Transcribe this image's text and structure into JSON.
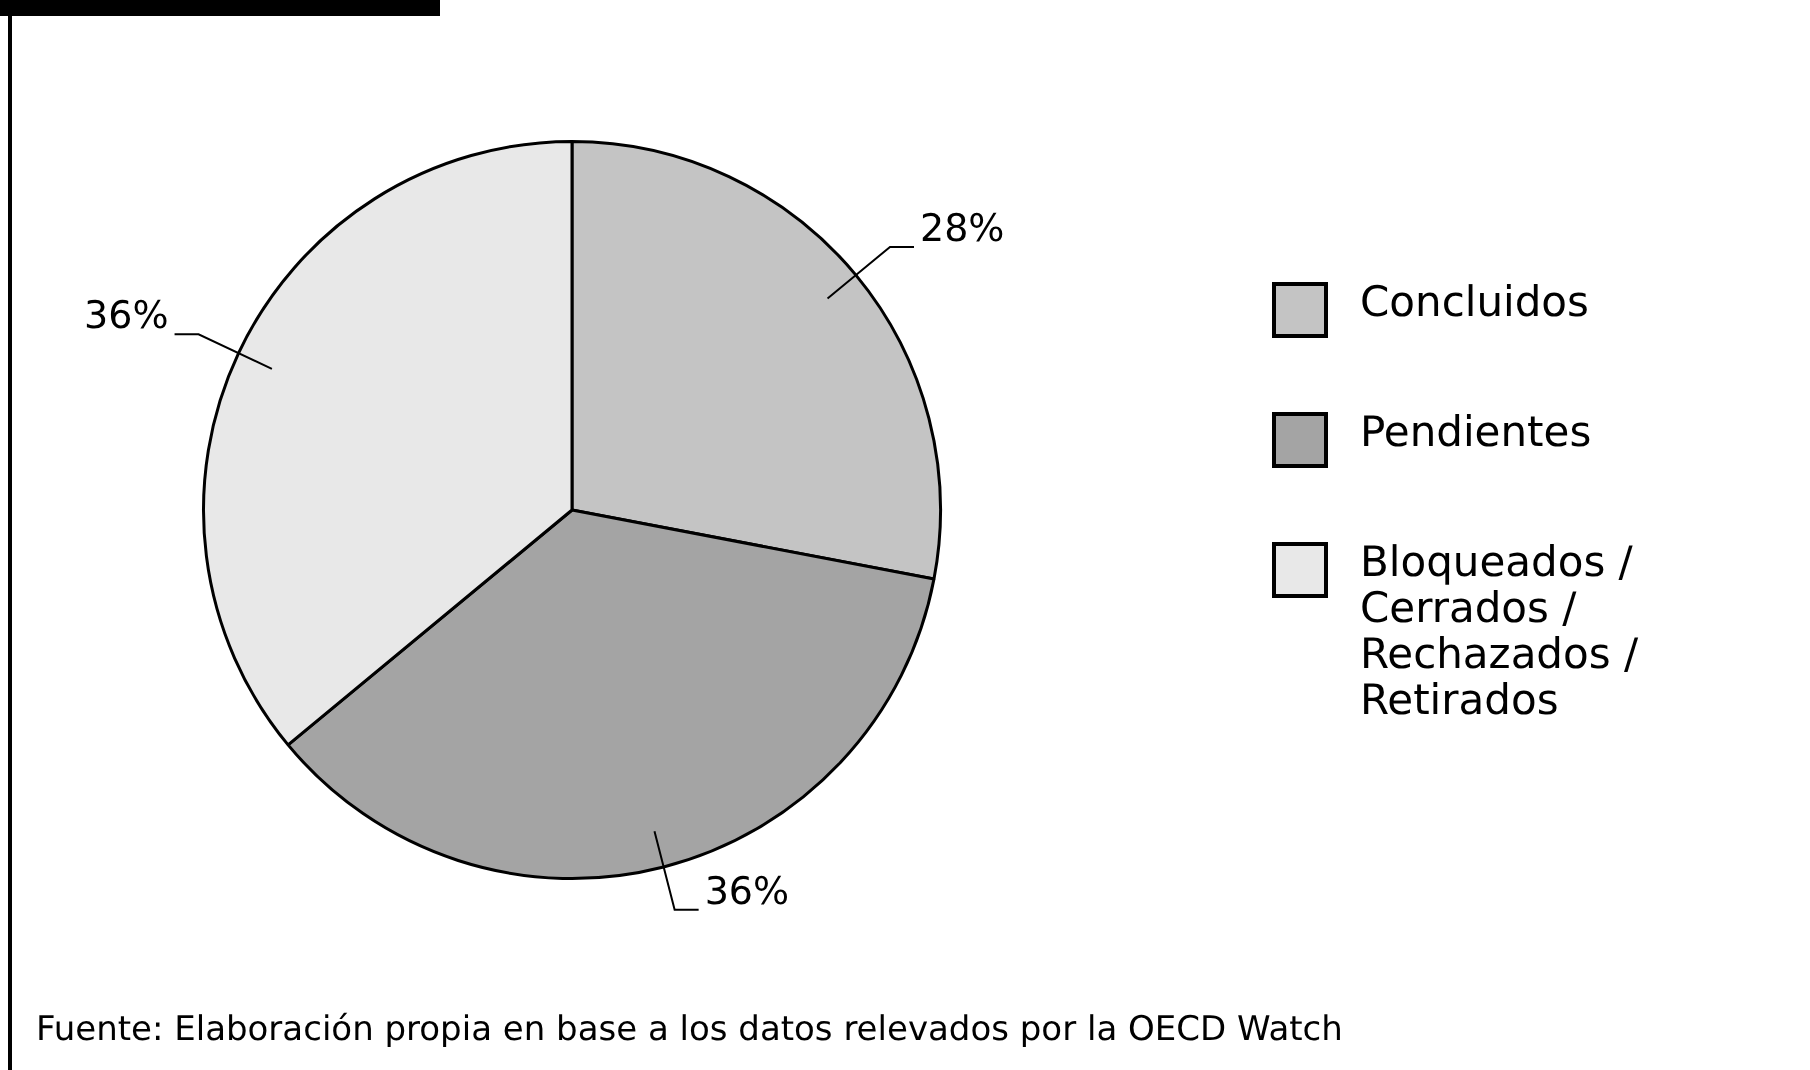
{
  "chart_data": {
    "type": "pie",
    "categories": [
      "Concluidos",
      "Pendientes",
      "Bloqueados / Cerrados / Rechazados / Retirados"
    ],
    "values": [
      28,
      36,
      36
    ],
    "value_labels": [
      "28%",
      "36%",
      "36%"
    ],
    "colors": [
      "#c4c4c4",
      "#a4a4a4",
      "#e8e8e8"
    ],
    "legend": "right",
    "annotations": [
      "Fuente: Elaboración propia en base a los datos relevados por la OECD Watch"
    ]
  }
}
